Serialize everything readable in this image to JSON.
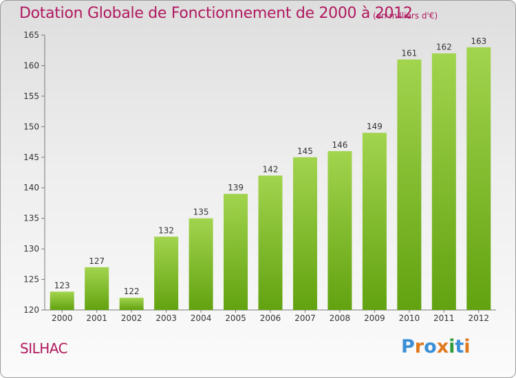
{
  "title": "Dotation Globale de Fonctionnement de 2000 à 2012",
  "unit": "(en milliers d'€)",
  "commune": "SILHAC",
  "logo": {
    "text": "Proxiti",
    "colors": [
      "#3a8fd6",
      "#e0781e",
      "#3a8fd6",
      "#e0781e",
      "#2f9c3a",
      "#3a8fd6",
      "#e0781e"
    ]
  },
  "colors": {
    "bar_light": "#9fd24a",
    "bar_dark": "#64a412",
    "title": "#b0185e"
  },
  "chart_data": {
    "type": "bar",
    "title": "Dotation Globale de Fonctionnement de 2000 à 2012",
    "categories": [
      "2000",
      "2001",
      "2002",
      "2003",
      "2004",
      "2005",
      "2006",
      "2007",
      "2008",
      "2009",
      "2010",
      "2011",
      "2012"
    ],
    "values": [
      123,
      127,
      122,
      132,
      135,
      139,
      142,
      145,
      146,
      149,
      161,
      162,
      163
    ],
    "ylim": [
      120,
      165
    ],
    "yticks": [
      120,
      125,
      130,
      135,
      140,
      145,
      150,
      155,
      160,
      165
    ],
    "grid": false,
    "xlabel": "",
    "ylabel": ""
  }
}
